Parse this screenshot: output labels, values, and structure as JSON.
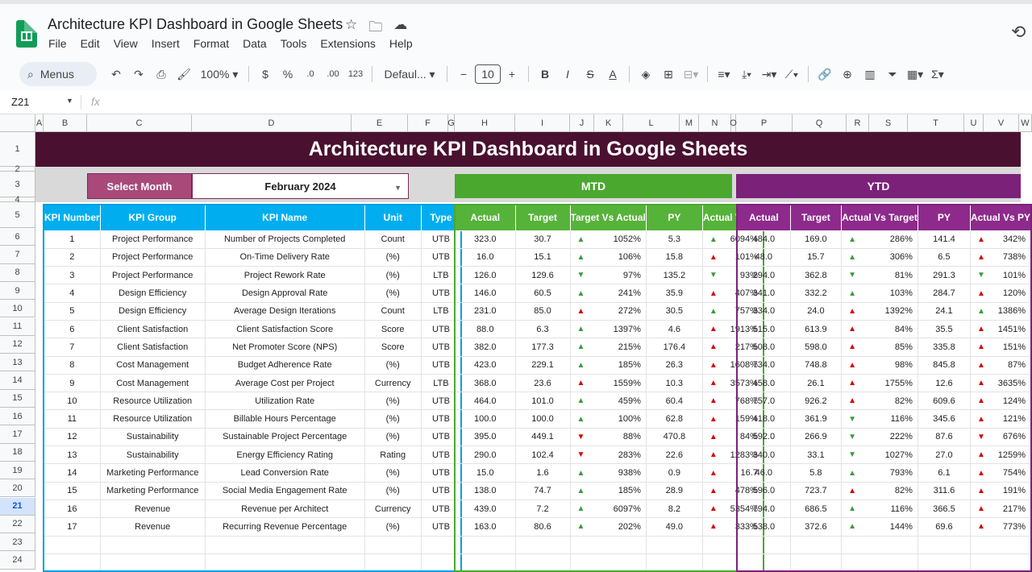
{
  "app": {
    "doc_title": "Architecture KPI Dashboard in Google Sheets",
    "menu": [
      "File",
      "Edit",
      "View",
      "Insert",
      "Format",
      "Data",
      "Tools",
      "Extensions",
      "Help"
    ],
    "toolbar": {
      "menus_label": "Menus",
      "zoom": "100%",
      "currency": "$",
      "percent": "%",
      "decimals_dec": ".0",
      "decimals_inc": ".00",
      "number_format": "123",
      "font": "Defaul...",
      "font_size": "10"
    },
    "name_box": "Z21",
    "fx": "fx"
  },
  "grid": {
    "columns": [
      {
        "l": "A",
        "x": 44,
        "w": 10
      },
      {
        "l": "B",
        "x": 54,
        "w": 54
      },
      {
        "l": "C",
        "x": 108,
        "w": 130
      },
      {
        "l": "D",
        "x": 238,
        "w": 198
      },
      {
        "l": "E",
        "x": 436,
        "w": 70
      },
      {
        "l": "F",
        "x": 506,
        "w": 50
      },
      {
        "l": "G",
        "x": 556,
        "w": 8
      },
      {
        "l": "H",
        "x": 564,
        "w": 75
      },
      {
        "l": "I",
        "x": 639,
        "w": 68
      },
      {
        "l": "J",
        "x": 707,
        "w": 30
      },
      {
        "l": "K",
        "x": 737,
        "w": 36
      },
      {
        "l": "L",
        "x": 773,
        "w": 70
      },
      {
        "l": "M",
        "x": 843,
        "w": 24
      },
      {
        "l": "N",
        "x": 867,
        "w": 40
      },
      {
        "l": "O",
        "x": 907,
        "w": 6
      },
      {
        "l": "P",
        "x": 913,
        "w": 70
      },
      {
        "l": "Q",
        "x": 983,
        "w": 67
      },
      {
        "l": "R",
        "x": 1050,
        "w": 28
      },
      {
        "l": "S",
        "x": 1078,
        "w": 48
      },
      {
        "l": "T",
        "x": 1126,
        "w": 70
      },
      {
        "l": "U",
        "x": 1196,
        "w": 24
      },
      {
        "l": "V",
        "x": 1220,
        "w": 44
      },
      {
        "l": "W",
        "x": 1264,
        "w": 16
      }
    ],
    "rows": [
      "1",
      "2",
      "3",
      "4",
      "5",
      "6",
      "7",
      "8",
      "9",
      "10",
      "11",
      "12",
      "13",
      "14",
      "15",
      "16",
      "17",
      "18",
      "19",
      "20",
      "21",
      "22",
      "23",
      "24"
    ],
    "selected_row": "21"
  },
  "dashboard": {
    "title": "Architecture KPI Dashboard in Google Sheets",
    "select_month_label": "Select Month",
    "select_month_value": "February 2024",
    "mtd_label": "MTD",
    "ytd_label": "YTD",
    "left_headers": [
      "KPI Number",
      "KPI Group",
      "KPI Name",
      "Unit",
      "Type"
    ],
    "mtd_headers": [
      "Actual",
      "Target",
      "Target Vs Actual",
      "PY",
      "Actual Vs PY"
    ],
    "ytd_headers": [
      "Actual",
      "Target",
      "Actual Vs Target",
      "PY",
      "Actual Vs PY"
    ],
    "kpis": [
      {
        "n": "1",
        "group": "Project Performance",
        "name": "Number of Projects Completed",
        "unit": "Count",
        "type": "UTB",
        "m_act": "323.0",
        "m_tgt": "30.7",
        "m_tva": "1052%",
        "m_tva_i": "up-g",
        "m_py": "5.3",
        "m_avp": "6094%",
        "m_avp_i": "up-g",
        "y_act": "484.0",
        "y_tgt": "169.0",
        "y_avt": "286%",
        "y_avt_i": "up-g",
        "y_py": "141.4",
        "y_avp": "342%",
        "y_avp_i": "up-r"
      },
      {
        "n": "2",
        "group": "Project Performance",
        "name": "On-Time Delivery Rate",
        "unit": "(%)",
        "type": "UTB",
        "m_act": "16.0",
        "m_tgt": "15.1",
        "m_tva": "106%",
        "m_tva_i": "up-g",
        "m_py": "15.8",
        "m_avp": "101%",
        "m_avp_i": "up-r",
        "y_act": "48.0",
        "y_tgt": "15.7",
        "y_avt": "306%",
        "y_avt_i": "up-g",
        "y_py": "6.5",
        "y_avp": "738%",
        "y_avp_i": "up-r"
      },
      {
        "n": "3",
        "group": "Project Performance",
        "name": "Project Rework Rate",
        "unit": "(%)",
        "type": "LTB",
        "m_act": "126.0",
        "m_tgt": "129.6",
        "m_tva": "97%",
        "m_tva_i": "dn-g",
        "m_py": "135.2",
        "m_avp": "93%",
        "m_avp_i": "dn-g",
        "y_act": "294.0",
        "y_tgt": "362.8",
        "y_avt": "81%",
        "y_avt_i": "dn-g",
        "y_py": "291.3",
        "y_avp": "101%",
        "y_avp_i": "dn-g"
      },
      {
        "n": "4",
        "group": "Design Efficiency",
        "name": "Design Approval Rate",
        "unit": "(%)",
        "type": "UTB",
        "m_act": "146.0",
        "m_tgt": "60.5",
        "m_tva": "241%",
        "m_tva_i": "up-g",
        "m_py": "35.9",
        "m_avp": "407%",
        "m_avp_i": "up-r",
        "y_act": "341.0",
        "y_tgt": "332.2",
        "y_avt": "103%",
        "y_avt_i": "up-g",
        "y_py": "284.7",
        "y_avp": "120%",
        "y_avp_i": "up-r"
      },
      {
        "n": "5",
        "group": "Design Efficiency",
        "name": "Average Design Iterations",
        "unit": "Count",
        "type": "LTB",
        "m_act": "231.0",
        "m_tgt": "85.0",
        "m_tva": "272%",
        "m_tva_i": "up-r",
        "m_py": "30.5",
        "m_avp": "757%",
        "m_avp_i": "up-g",
        "y_act": "334.0",
        "y_tgt": "24.0",
        "y_avt": "1392%",
        "y_avt_i": "up-r",
        "y_py": "24.1",
        "y_avp": "1386%",
        "y_avp_i": "up-g"
      },
      {
        "n": "6",
        "group": "Client Satisfaction",
        "name": "Client Satisfaction Score",
        "unit": "Score",
        "type": "UTB",
        "m_act": "88.0",
        "m_tgt": "6.3",
        "m_tva": "1397%",
        "m_tva_i": "up-g",
        "m_py": "4.6",
        "m_avp": "1913%",
        "m_avp_i": "up-r",
        "y_act": "515.0",
        "y_tgt": "613.9",
        "y_avt": "84%",
        "y_avt_i": "up-r",
        "y_py": "35.5",
        "y_avp": "1451%",
        "y_avp_i": "up-r"
      },
      {
        "n": "7",
        "group": "Client Satisfaction",
        "name": "Net Promoter Score (NPS)",
        "unit": "Score",
        "type": "UTB",
        "m_act": "382.0",
        "m_tgt": "177.3",
        "m_tva": "215%",
        "m_tva_i": "up-g",
        "m_py": "176.4",
        "m_avp": "217%",
        "m_avp_i": "up-r",
        "y_act": "508.0",
        "y_tgt": "598.0",
        "y_avt": "85%",
        "y_avt_i": "up-r",
        "y_py": "335.8",
        "y_avp": "151%",
        "y_avp_i": "up-r"
      },
      {
        "n": "8",
        "group": "Cost Management",
        "name": "Budget Adherence Rate",
        "unit": "(%)",
        "type": "UTB",
        "m_act": "423.0",
        "m_tgt": "229.1",
        "m_tva": "185%",
        "m_tva_i": "up-g",
        "m_py": "26.3",
        "m_avp": "1608%",
        "m_avp_i": "up-r",
        "y_act": "734.0",
        "y_tgt": "748.8",
        "y_avt": "98%",
        "y_avt_i": "up-r",
        "y_py": "845.8",
        "y_avp": "87%",
        "y_avp_i": "up-r"
      },
      {
        "n": "9",
        "group": "Cost Management",
        "name": "Average Cost per Project",
        "unit": "Currency",
        "type": "LTB",
        "m_act": "368.0",
        "m_tgt": "23.6",
        "m_tva": "1559%",
        "m_tva_i": "up-r",
        "m_py": "10.3",
        "m_avp": "3573%",
        "m_avp_i": "up-r",
        "y_act": "458.0",
        "y_tgt": "26.1",
        "y_avt": "1755%",
        "y_avt_i": "up-r",
        "y_py": "12.6",
        "y_avp": "3635%",
        "y_avp_i": "up-r"
      },
      {
        "n": "10",
        "group": "Resource Utilization",
        "name": "Utilization Rate",
        "unit": "(%)",
        "type": "UTB",
        "m_act": "464.0",
        "m_tgt": "101.0",
        "m_tva": "459%",
        "m_tva_i": "up-g",
        "m_py": "60.4",
        "m_avp": "768%",
        "m_avp_i": "up-r",
        "y_act": "757.0",
        "y_tgt": "926.2",
        "y_avt": "82%",
        "y_avt_i": "up-r",
        "y_py": "609.6",
        "y_avp": "124%",
        "y_avp_i": "up-r"
      },
      {
        "n": "11",
        "group": "Resource Utilization",
        "name": "Billable Hours Percentage",
        "unit": "(%)",
        "type": "UTB",
        "m_act": "100.0",
        "m_tgt": "100.0",
        "m_tva": "100%",
        "m_tva_i": "up-g",
        "m_py": "62.8",
        "m_avp": "159%",
        "m_avp_i": "up-r",
        "y_act": "418.0",
        "y_tgt": "361.9",
        "y_avt": "116%",
        "y_avt_i": "dn-g",
        "y_py": "345.6",
        "y_avp": "121%",
        "y_avp_i": "up-r"
      },
      {
        "n": "12",
        "group": "Sustainability",
        "name": "Sustainable Project Percentage",
        "unit": "(%)",
        "type": "UTB",
        "m_act": "395.0",
        "m_tgt": "449.1",
        "m_tva": "88%",
        "m_tva_i": "dn-r",
        "m_py": "470.8",
        "m_avp": "84%",
        "m_avp_i": "up-r",
        "y_act": "592.0",
        "y_tgt": "266.9",
        "y_avt": "222%",
        "y_avt_i": "dn-g",
        "y_py": "87.6",
        "y_avp": "676%",
        "y_avp_i": "dn-r"
      },
      {
        "n": "13",
        "group": "Sustainability",
        "name": "Energy Efficiency Rating",
        "unit": "Rating",
        "type": "UTB",
        "m_act": "290.0",
        "m_tgt": "102.4",
        "m_tva": "283%",
        "m_tva_i": "dn-r",
        "m_py": "22.6",
        "m_avp": "1283%",
        "m_avp_i": "up-r",
        "y_act": "340.0",
        "y_tgt": "33.1",
        "y_avt": "1027%",
        "y_avt_i": "dn-g",
        "y_py": "27.0",
        "y_avp": "1259%",
        "y_avp_i": "up-r"
      },
      {
        "n": "14",
        "group": "Marketing Performance",
        "name": "Lead Conversion Rate",
        "unit": "(%)",
        "type": "UTB",
        "m_act": "15.0",
        "m_tgt": "1.6",
        "m_tva": "938%",
        "m_tva_i": "up-g",
        "m_py": "0.9",
        "m_avp": "16.7",
        "m_avp_i": "up-r",
        "y_act": "46.0",
        "y_tgt": "5.8",
        "y_avt": "793%",
        "y_avt_i": "up-g",
        "y_py": "6.1",
        "y_avp": "754%",
        "y_avp_i": "up-r"
      },
      {
        "n": "15",
        "group": "Marketing Performance",
        "name": "Social Media Engagement Rate",
        "unit": "(%)",
        "type": "UTB",
        "m_act": "138.0",
        "m_tgt": "74.7",
        "m_tva": "185%",
        "m_tva_i": "up-g",
        "m_py": "28.9",
        "m_avp": "478%",
        "m_avp_i": "up-r",
        "y_act": "596.0",
        "y_tgt": "723.7",
        "y_avt": "82%",
        "y_avt_i": "up-r",
        "y_py": "311.6",
        "y_avp": "191%",
        "y_avp_i": "up-r"
      },
      {
        "n": "16",
        "group": "Revenue",
        "name": "Revenue per Architect",
        "unit": "Currency",
        "type": "UTB",
        "m_act": "439.0",
        "m_tgt": "7.2",
        "m_tva": "6097%",
        "m_tva_i": "up-g",
        "m_py": "8.2",
        "m_avp": "5354%",
        "m_avp_i": "up-r",
        "y_act": "794.0",
        "y_tgt": "686.5",
        "y_avt": "116%",
        "y_avt_i": "up-g",
        "y_py": "366.5",
        "y_avp": "217%",
        "y_avp_i": "up-r"
      },
      {
        "n": "17",
        "group": "Revenue",
        "name": "Recurring Revenue Percentage",
        "unit": "(%)",
        "type": "UTB",
        "m_act": "163.0",
        "m_tgt": "80.6",
        "m_tva": "202%",
        "m_tva_i": "up-g",
        "m_py": "49.0",
        "m_avp": "333%",
        "m_avp_i": "up-r",
        "y_act": "538.0",
        "y_tgt": "372.6",
        "y_avt": "144%",
        "y_avt_i": "up-g",
        "y_py": "69.6",
        "y_avp": "773%",
        "y_avp_i": "up-r"
      }
    ]
  }
}
